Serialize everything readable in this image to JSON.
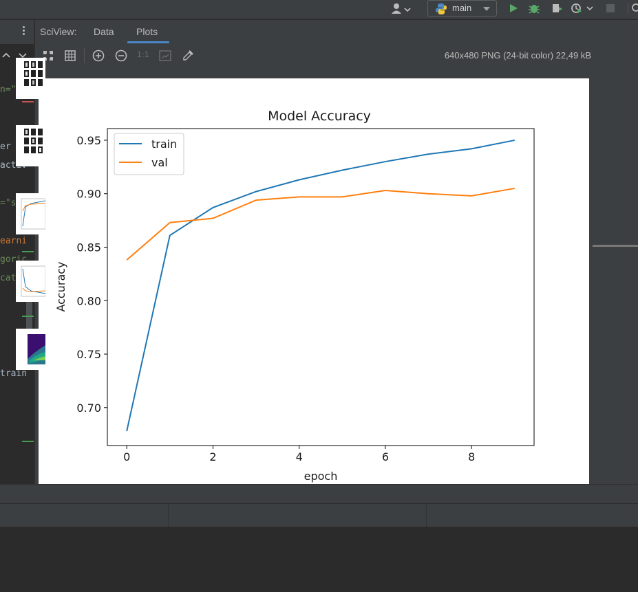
{
  "toolbar": {
    "branch_label": "main",
    "icons": [
      "user-icon",
      "python-icon",
      "run-icon",
      "debug-icon",
      "coverage-icon",
      "profile-icon",
      "stop-icon"
    ]
  },
  "sciview": {
    "label": "SciView:",
    "tabs": [
      {
        "label": "Data",
        "active": false
      },
      {
        "label": "Plots",
        "active": true
      }
    ]
  },
  "plot_toolbar": {
    "icons": [
      "fit-zoom-icon",
      "grid-icon",
      "zoom-in-icon",
      "zoom-out-icon",
      "actual-size-icon",
      "background-icon",
      "color-picker-icon"
    ],
    "actual_size_label": "1:1",
    "image_info": "640x480 PNG (24-bit color) 22,49 kB"
  },
  "editor": {
    "lines": [
      {
        "text": "n=\"re",
        "kind": "str"
      },
      {
        "text": "er of",
        "kind": "plain"
      },
      {
        "text": "activ",
        "kind": "plain"
      },
      {
        "text": "=\"sof",
        "kind": "str"
      },
      {
        "text": "earni",
        "kind": "kw"
      },
      {
        "text": "goric",
        "kind": "str"
      },
      {
        "text": "categ",
        "kind": "str"
      },
      {
        "text": "train",
        "kind": "plain"
      }
    ]
  },
  "chart_data": {
    "type": "line",
    "title": "Model Accuracy",
    "xlabel": "epoch",
    "ylabel": "Accuracy",
    "x": [
      0,
      1,
      2,
      3,
      4,
      5,
      6,
      7,
      8,
      9
    ],
    "xticks": [
      "0",
      "2",
      "4",
      "6",
      "8"
    ],
    "yticks": [
      "0.70",
      "0.75",
      "0.80",
      "0.85",
      "0.90",
      "0.95"
    ],
    "xlim": [
      -0.45,
      9.45
    ],
    "ylim": [
      0.6645,
      0.9609
    ],
    "grid": false,
    "legend_position": "upper-left",
    "series": [
      {
        "name": "train",
        "color": "#1f77b4",
        "values": [
          0.678,
          0.861,
          0.887,
          0.902,
          0.913,
          0.922,
          0.93,
          0.937,
          0.942,
          0.95
        ]
      },
      {
        "name": "val",
        "color": "#ff7f0e",
        "values": [
          0.838,
          0.873,
          0.877,
          0.894,
          0.897,
          0.897,
          0.903,
          0.9,
          0.898,
          0.905
        ]
      }
    ]
  },
  "thumbnails": [
    {
      "kind": "image-grid"
    },
    {
      "kind": "image-grid"
    },
    {
      "kind": "accuracy-plot"
    },
    {
      "kind": "loss-plot"
    },
    {
      "kind": "heatmap"
    }
  ]
}
